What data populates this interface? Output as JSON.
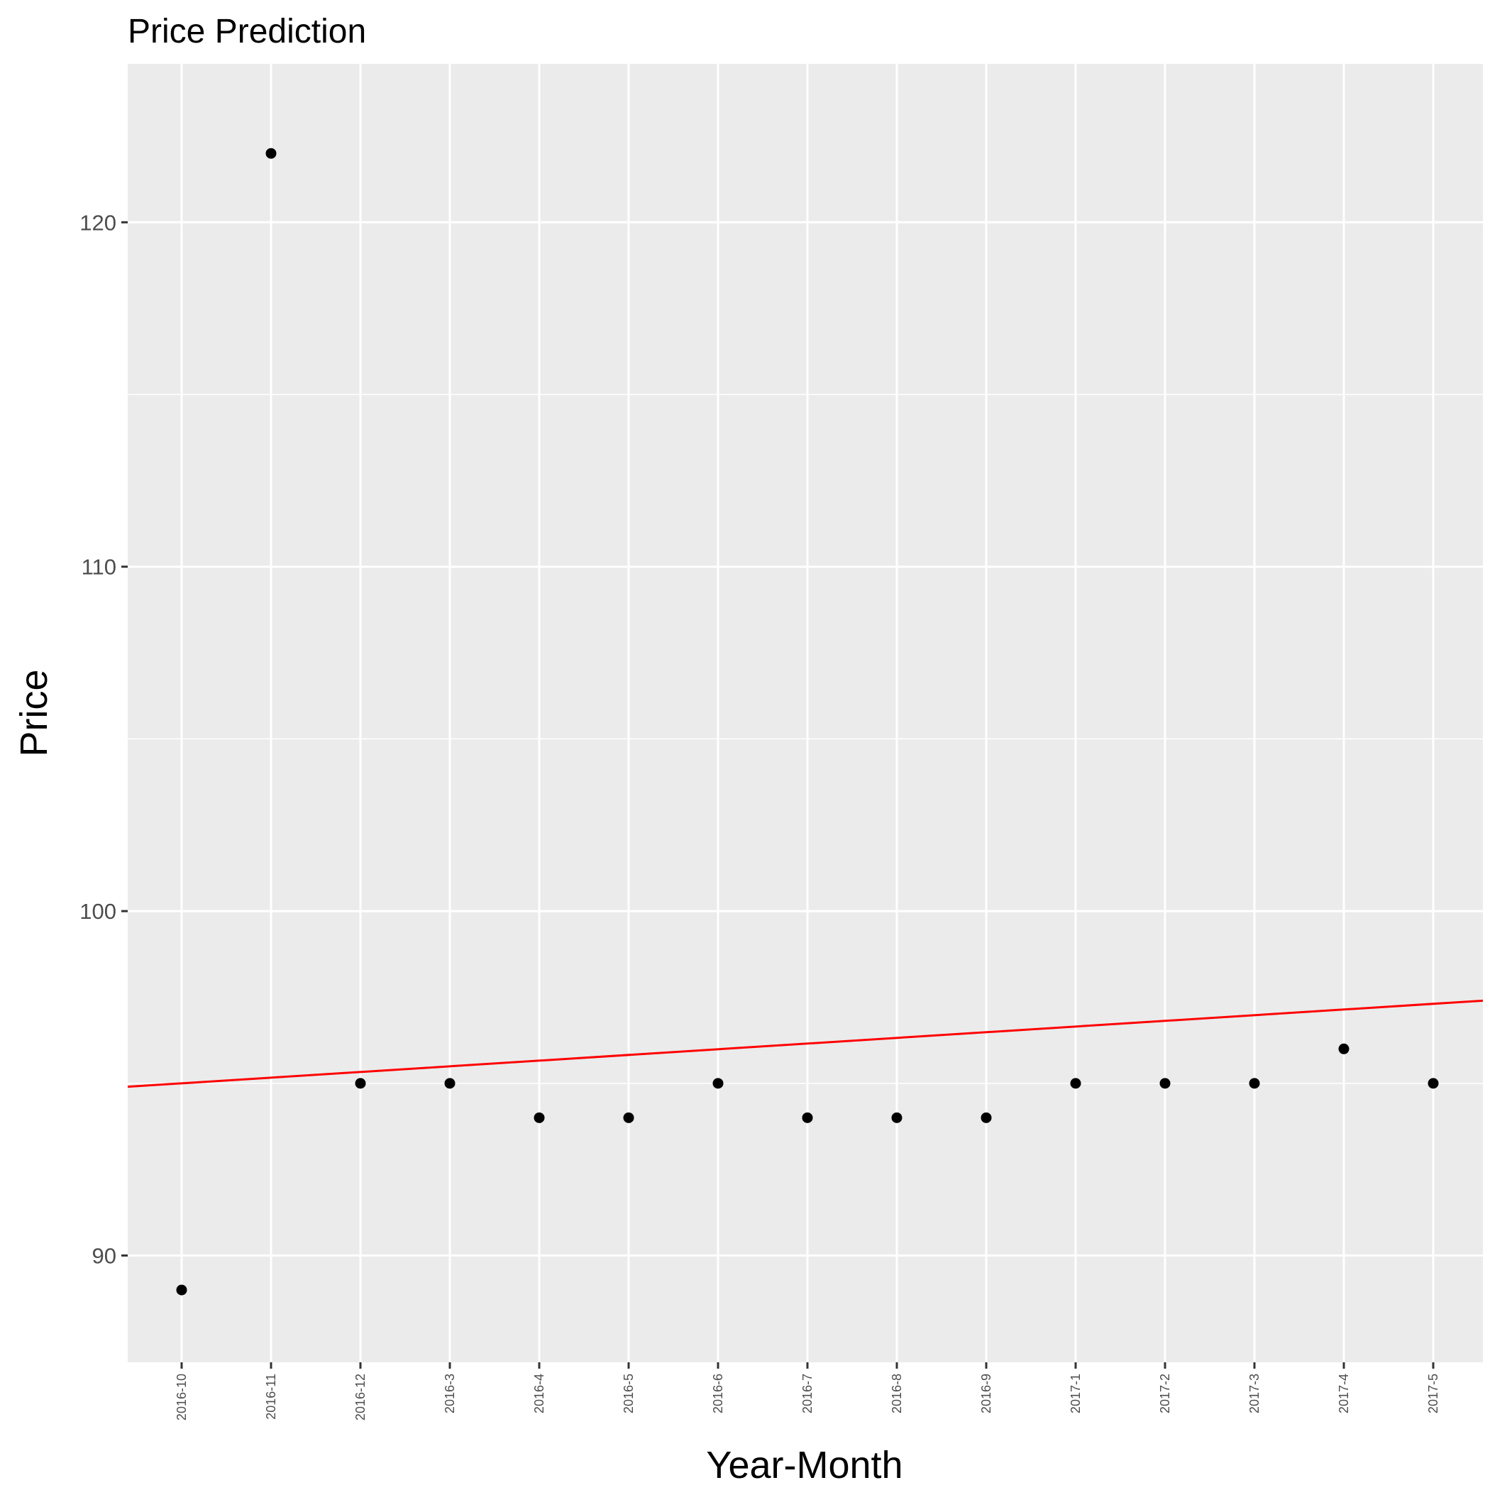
{
  "chart_data": {
    "type": "scatter",
    "title": "Price Prediction",
    "xlabel": "Year-Month",
    "ylabel": "Price",
    "categories": [
      "2016-10",
      "2016-11",
      "2016-12",
      "2016-3",
      "2016-4",
      "2016-5",
      "2016-6",
      "2016-7",
      "2016-8",
      "2016-9",
      "2017-1",
      "2017-2",
      "2017-3",
      "2017-4",
      "2017-5"
    ],
    "series": [
      {
        "values": [
          89,
          122,
          95,
          95,
          94,
          94,
          95,
          94,
          94,
          94,
          95,
          95,
          95,
          96,
          95
        ],
        "color": "#000000"
      }
    ],
    "trend_line": {
      "color": "#ff0000",
      "start": 94.9,
      "end": 97.4
    },
    "y_ticks": [
      90,
      100,
      110,
      120
    ],
    "ylim": [
      86.9,
      124.6
    ],
    "grid": true,
    "panel_background": "#ebebeb",
    "grid_color": "#ffffff"
  }
}
